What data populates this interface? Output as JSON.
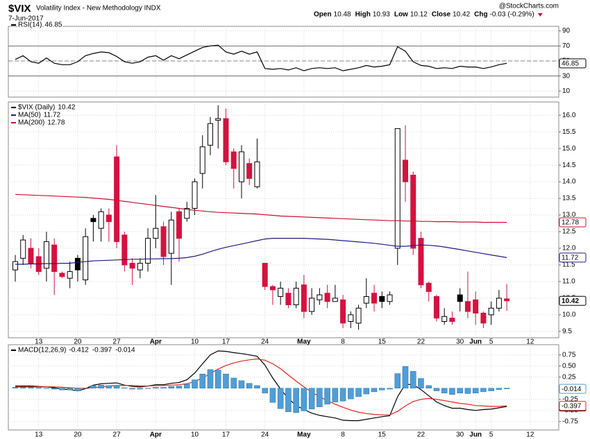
{
  "header": {
    "symbol": "$VIX",
    "name": "Volatility Index - New Methodology INDX",
    "date": "7-Jun-2017",
    "source": "@StockCharts.com",
    "quote": [
      {
        "name": "Open",
        "value": 10.48
      },
      {
        "name": "High",
        "value": 10.93
      },
      {
        "name": "Low",
        "value": 10.12
      },
      {
        "name": "Close",
        "value": 10.42
      },
      {
        "name": "Chg",
        "value": -0.03
      }
    ],
    "change_pct": {
      "value": -0.29,
      "label": "(-0.29%)"
    }
  },
  "chart_data": [
    {
      "type": "line",
      "series": [
        {
          "name": "RSI(14)",
          "color": "#000000",
          "values": [
            52,
            57,
            49,
            47,
            54,
            47,
            45,
            45,
            49,
            57,
            60,
            62,
            61,
            56,
            49,
            47,
            49,
            55,
            57,
            51,
            57,
            53,
            58,
            63,
            68,
            70,
            71,
            62,
            59,
            63,
            59,
            62,
            40,
            39,
            40,
            38,
            41,
            37,
            40,
            41,
            40,
            41,
            37,
            39,
            41,
            44,
            42,
            43,
            45,
            69,
            63,
            49,
            44,
            43,
            40,
            41,
            40,
            43,
            42,
            42,
            40,
            42,
            45,
            46.85,
            null,
            null,
            null
          ]
        }
      ],
      "ylim": [
        2,
        96
      ],
      "yticks": [
        10,
        30,
        50,
        70,
        90
      ],
      "reference_lines": [
        {
          "value": 70,
          "dash": false
        },
        {
          "value": 50,
          "dash": true
        },
        {
          "value": 30,
          "dash": false
        }
      ],
      "grid": true
    },
    {
      "type": "candlestick",
      "categories": [
        null,
        null,
        null,
        "13",
        null,
        null,
        null,
        null,
        "20",
        null,
        null,
        null,
        null,
        "27",
        null,
        null,
        null,
        null,
        "Apr",
        null,
        null,
        null,
        null,
        "10",
        null,
        null,
        null,
        "17",
        null,
        null,
        null,
        null,
        "24",
        null,
        null,
        null,
        null,
        "May",
        null,
        null,
        null,
        null,
        "8",
        null,
        null,
        null,
        null,
        "15",
        null,
        null,
        null,
        null,
        "22",
        null,
        null,
        null,
        null,
        "30",
        null,
        "Jun",
        null,
        "5",
        null,
        null,
        null,
        null,
        "12"
      ],
      "series": [
        {
          "name": "$VIX (Daily)",
          "up_color": "#000000",
          "down_color": "#d4123f",
          "open": [
            11.35,
            11.7,
            12.0,
            11.75,
            11.4,
            12.1,
            11.25,
            11.1,
            11.7,
            11.05,
            12.9,
            12.6,
            13.0,
            14.75,
            12.4,
            11.55,
            11.35,
            11.55,
            12.3,
            12.65,
            11.85,
            13.1,
            12.9,
            13.2,
            14.25,
            15.1,
            15.85,
            15.9,
            14.9,
            14.0,
            14.55,
            13.85,
            11.55,
            10.85,
            10.55,
            10.65,
            10.3,
            10.9,
            10.1,
            10.45,
            10.65,
            10.4,
            10.45,
            9.8,
            9.75,
            10.35,
            10.65,
            10.55,
            10.4,
            12.0,
            14.65,
            14.2,
            12.3,
            10.95,
            10.55,
            9.8,
            9.9,
            10.6,
            10.4,
            10.45,
            10.05,
            10.0,
            10.2,
            10.48,
            null,
            null,
            null
          ],
          "high": [
            11.8,
            12.4,
            12.3,
            12.0,
            12.5,
            12.3,
            11.3,
            11.6,
            11.8,
            12.6,
            13.0,
            13.2,
            13.2,
            15.1,
            12.5,
            11.7,
            11.7,
            12.6,
            13.6,
            12.8,
            13.1,
            13.2,
            13.4,
            14.1,
            15.4,
            15.95,
            16.3,
            16.2,
            15.0,
            15.1,
            14.7,
            15.3,
            11.55,
            10.9,
            11.0,
            10.8,
            11.0,
            11.2,
            10.8,
            10.8,
            10.9,
            10.9,
            10.6,
            10.1,
            10.3,
            11.1,
            10.9,
            10.7,
            10.7,
            15.6,
            15.7,
            14.3,
            12.5,
            11.0,
            10.6,
            10.2,
            10.1,
            10.8,
            11.3,
            10.7,
            10.1,
            10.4,
            10.75,
            10.93,
            null,
            null,
            null
          ],
          "low": [
            11.0,
            11.5,
            11.4,
            11.2,
            11.0,
            10.6,
            11.1,
            10.8,
            11.0,
            10.9,
            12.2,
            12.2,
            12.2,
            12.0,
            11.3,
            10.9,
            11.1,
            11.3,
            12.0,
            11.5,
            10.9,
            11.6,
            12.8,
            13.0,
            13.8,
            14.8,
            15.0,
            14.5,
            13.8,
            13.5,
            13.9,
            13.8,
            10.75,
            10.3,
            10.3,
            10.2,
            10.2,
            9.9,
            10.0,
            10.3,
            10.2,
            10.4,
            9.6,
            9.6,
            9.55,
            10.2,
            10.1,
            10.2,
            10.3,
            11.5,
            13.4,
            11.8,
            10.8,
            10.4,
            9.8,
            9.7,
            9.7,
            10.1,
            9.9,
            9.7,
            9.6,
            9.7,
            10.1,
            10.12,
            null,
            null,
            null
          ],
          "close": [
            11.6,
            12.25,
            11.55,
            11.3,
            12.2,
            11.3,
            11.15,
            11.3,
            11.35,
            12.35,
            12.8,
            13.1,
            12.8,
            12.2,
            11.5,
            11.4,
            11.55,
            12.3,
            12.6,
            11.75,
            12.85,
            12.3,
            13.2,
            14.0,
            15.05,
            15.75,
            15.9,
            14.6,
            14.4,
            14.9,
            14.1,
            14.6,
            10.85,
            10.75,
            10.8,
            10.3,
            10.8,
            10.1,
            10.5,
            10.6,
            10.4,
            10.5,
            9.75,
            10.0,
            10.2,
            10.55,
            10.35,
            10.4,
            10.6,
            15.6,
            14.0,
            12.0,
            10.9,
            10.7,
            9.9,
            9.95,
            9.8,
            10.4,
            10.1,
            10.05,
            9.75,
            10.2,
            10.5,
            10.42,
            null,
            null,
            null
          ]
        },
        {
          "name": "MA(50)",
          "color": "#1c1c80",
          "values": [
            11.52,
            11.52,
            11.53,
            11.53,
            11.54,
            11.54,
            11.55,
            11.55,
            11.58,
            11.6,
            11.62,
            11.63,
            11.64,
            11.65,
            11.66,
            11.67,
            11.67,
            11.68,
            11.68,
            11.69,
            11.69,
            11.7,
            11.72,
            11.76,
            11.82,
            11.9,
            11.97,
            12.03,
            12.08,
            12.13,
            12.18,
            12.23,
            12.28,
            12.3,
            12.3,
            12.3,
            12.3,
            12.3,
            12.29,
            12.28,
            12.27,
            12.25,
            12.23,
            12.21,
            12.19,
            12.17,
            12.15,
            12.12,
            12.09,
            12.06,
            12.06,
            12.08,
            12.1,
            12.09,
            12.07,
            12.04,
            12.0,
            11.96,
            11.92,
            11.88,
            11.84,
            11.8,
            11.76,
            11.72,
            null,
            null,
            null
          ]
        },
        {
          "name": "MA(200)",
          "color": "#c8102e",
          "values": [
            13.62,
            13.61,
            13.6,
            13.59,
            13.58,
            13.57,
            13.56,
            13.55,
            13.54,
            13.53,
            13.51,
            13.49,
            13.47,
            13.44,
            13.41,
            13.38,
            13.35,
            13.32,
            13.29,
            13.26,
            13.23,
            13.2,
            13.17,
            13.14,
            13.12,
            13.1,
            13.08,
            13.07,
            13.06,
            13.05,
            13.04,
            13.03,
            13.01,
            12.99,
            12.97,
            12.96,
            12.95,
            12.94,
            12.93,
            12.92,
            12.91,
            12.9,
            12.89,
            12.88,
            12.87,
            12.86,
            12.85,
            12.84,
            12.83,
            12.83,
            12.82,
            12.82,
            12.81,
            12.81,
            12.8,
            12.8,
            12.8,
            12.79,
            12.79,
            12.79,
            12.78,
            12.78,
            12.78,
            12.78,
            null,
            null,
            null
          ]
        }
      ],
      "ylim": [
        9.31,
        16.4
      ],
      "yticks": [
        9.5,
        {
          "value": 10,
          "label": "10.0"
        },
        10.5,
        {
          "value": 11,
          "label": "11.0"
        },
        11.5,
        {
          "value": 12,
          "label": "12.0"
        },
        12.5,
        {
          "value": 13,
          "label": "13.0"
        },
        13.5,
        {
          "value": 14,
          "label": "14.0"
        },
        14.5,
        {
          "value": 15,
          "label": "15.0"
        },
        15.5,
        {
          "value": 16,
          "label": "16.0"
        }
      ],
      "grid": true
    },
    {
      "type": "line",
      "series": [
        {
          "name": "MACD(12,26,9)",
          "color": "#000000",
          "values": [
            0.05,
            0.05,
            0.05,
            0.04,
            0.03,
            0.01,
            -0.02,
            -0.03,
            -0.06,
            -0.01,
            0.07,
            0.1,
            0.11,
            0.12,
            0.07,
            0.04,
            0.03,
            0.05,
            0.08,
            0.08,
            0.11,
            0.13,
            0.19,
            0.34,
            0.55,
            0.75,
            0.84,
            0.83,
            0.8,
            0.78,
            0.75,
            0.72,
            0.52,
            0.23,
            -0.02,
            -0.23,
            -0.39,
            -0.48,
            -0.56,
            -0.61,
            -0.64,
            -0.67,
            -0.72,
            -0.73,
            -0.73,
            -0.7,
            -0.67,
            -0.64,
            -0.62,
            -0.19,
            0.09,
            0.08,
            -0.03,
            -0.17,
            -0.31,
            -0.39,
            -0.45,
            -0.45,
            -0.48,
            -0.5,
            -0.48,
            -0.47,
            -0.44,
            -0.412,
            null,
            null,
            null
          ]
        },
        {
          "color": "#d9261c",
          "values": [
            0.03,
            0.03,
            0.03,
            0.03,
            0.03,
            0.03,
            0.02,
            0.01,
            0.0,
            0.0,
            0.01,
            0.03,
            0.05,
            0.06,
            0.06,
            0.06,
            0.05,
            0.05,
            0.06,
            0.06,
            0.07,
            0.08,
            0.1,
            0.15,
            0.23,
            0.33,
            0.43,
            0.51,
            0.57,
            0.61,
            0.64,
            0.66,
            0.63,
            0.55,
            0.44,
            0.3,
            0.16,
            0.03,
            -0.09,
            -0.19,
            -0.28,
            -0.36,
            -0.43,
            -0.49,
            -0.54,
            -0.57,
            -0.59,
            -0.6,
            -0.6,
            -0.52,
            -0.4,
            -0.3,
            -0.25,
            -0.23,
            -0.25,
            -0.28,
            -0.31,
            -0.34,
            -0.36,
            -0.39,
            -0.4,
            -0.41,
            -0.41,
            -0.397,
            null,
            null,
            null
          ]
        },
        {
          "style": "histogram",
          "color": "#4f9ed8",
          "values": [
            0.02,
            0.02,
            0.02,
            0.01,
            0,
            -0.02,
            -0.04,
            -0.04,
            -0.06,
            -0.01,
            0.06,
            0.07,
            0.06,
            0.06,
            0.01,
            -0.02,
            -0.02,
            0,
            0.02,
            0.02,
            0.04,
            0.05,
            0.09,
            0.19,
            0.32,
            0.42,
            0.41,
            0.32,
            0.23,
            0.17,
            0.11,
            0.06,
            -0.11,
            -0.32,
            -0.46,
            -0.53,
            -0.55,
            -0.51,
            -0.47,
            -0.42,
            -0.36,
            -0.31,
            -0.29,
            -0.24,
            -0.19,
            -0.13,
            -0.08,
            -0.04,
            -0.02,
            0.33,
            0.49,
            0.38,
            0.22,
            0.06,
            -0.06,
            -0.11,
            -0.14,
            -0.11,
            -0.12,
            -0.11,
            -0.08,
            -0.06,
            -0.03,
            -0.014,
            null,
            null,
            null
          ]
        }
      ],
      "ylim": [
        -0.94,
        0.98
      ],
      "yticks": [
        -0.75,
        {
          "value": -0.5,
          "label": "-0.50"
        },
        -0.25,
        0.25,
        {
          "value": 0.5,
          "label": "0.50"
        },
        0.75
      ],
      "grid": true
    }
  ]
}
